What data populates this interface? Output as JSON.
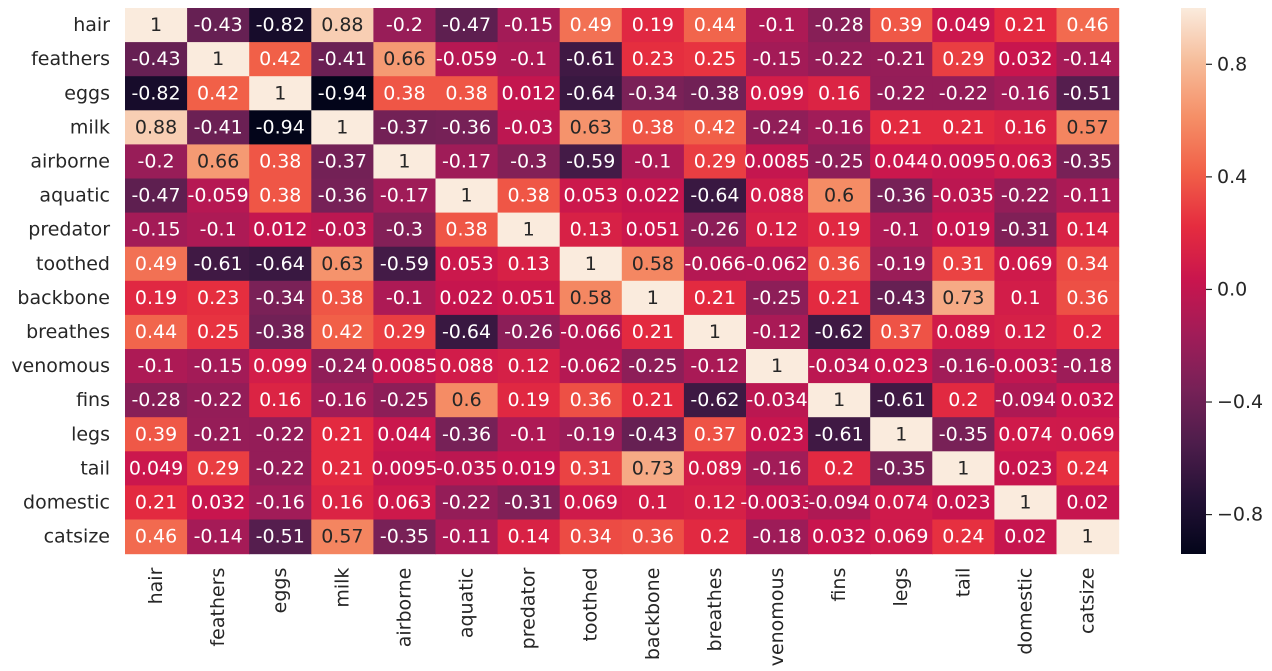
{
  "chart_data": {
    "type": "heatmap",
    "title": "",
    "xlabel": "",
    "ylabel": "",
    "colormap": "rocket",
    "vmin": -0.94,
    "vmax": 1,
    "labels": [
      "hair",
      "feathers",
      "eggs",
      "milk",
      "airborne",
      "aquatic",
      "predator",
      "toothed",
      "backbone",
      "breathes",
      "venomous",
      "fins",
      "legs",
      "tail",
      "domestic",
      "catsize"
    ],
    "values": [
      [
        1,
        -0.43,
        -0.82,
        0.88,
        -0.2,
        -0.47,
        -0.15,
        0.49,
        0.19,
        0.44,
        -0.1,
        -0.28,
        0.39,
        0.049,
        0.21,
        0.46
      ],
      [
        -0.43,
        1,
        0.42,
        -0.41,
        0.66,
        -0.059,
        -0.1,
        -0.61,
        0.23,
        0.25,
        -0.15,
        -0.22,
        -0.21,
        0.29,
        0.032,
        -0.14
      ],
      [
        -0.82,
        0.42,
        1,
        -0.94,
        0.38,
        0.38,
        0.012,
        -0.64,
        -0.34,
        -0.38,
        0.099,
        0.16,
        -0.22,
        -0.22,
        -0.16,
        -0.51
      ],
      [
        0.88,
        -0.41,
        -0.94,
        1,
        -0.37,
        -0.36,
        -0.03,
        0.63,
        0.38,
        0.42,
        -0.24,
        -0.16,
        0.21,
        0.21,
        0.16,
        0.57
      ],
      [
        -0.2,
        0.66,
        0.38,
        -0.37,
        1,
        -0.17,
        -0.3,
        -0.59,
        -0.1,
        0.29,
        0.0085,
        -0.25,
        0.044,
        0.0095,
        0.063,
        -0.35
      ],
      [
        -0.47,
        -0.059,
        0.38,
        -0.36,
        -0.17,
        1,
        0.38,
        0.053,
        0.022,
        -0.64,
        0.088,
        0.6,
        -0.36,
        -0.035,
        -0.22,
        -0.11
      ],
      [
        -0.15,
        -0.1,
        0.012,
        -0.03,
        -0.3,
        0.38,
        1,
        0.13,
        0.051,
        -0.26,
        0.12,
        0.19,
        -0.1,
        0.019,
        -0.31,
        0.14
      ],
      [
        0.49,
        -0.61,
        -0.64,
        0.63,
        -0.59,
        0.053,
        0.13,
        1,
        0.58,
        -0.066,
        -0.062,
        0.36,
        -0.19,
        0.31,
        0.069,
        0.34
      ],
      [
        0.19,
        0.23,
        -0.34,
        0.38,
        -0.1,
        0.022,
        0.051,
        0.58,
        1,
        0.21,
        -0.25,
        0.21,
        -0.43,
        0.73,
        0.1,
        0.36
      ],
      [
        0.44,
        0.25,
        -0.38,
        0.42,
        0.29,
        -0.64,
        -0.26,
        -0.066,
        0.21,
        1,
        -0.12,
        -0.62,
        0.37,
        0.089,
        0.12,
        0.2
      ],
      [
        -0.1,
        -0.15,
        0.099,
        -0.24,
        0.0085,
        0.088,
        0.12,
        -0.062,
        -0.25,
        -0.12,
        1,
        -0.034,
        0.023,
        -0.16,
        -0.0033,
        -0.18
      ],
      [
        -0.28,
        -0.22,
        0.16,
        -0.16,
        -0.25,
        0.6,
        0.19,
        0.36,
        0.21,
        -0.62,
        -0.034,
        1,
        -0.61,
        0.2,
        -0.094,
        0.032
      ],
      [
        0.39,
        -0.21,
        -0.22,
        0.21,
        0.044,
        -0.36,
        -0.1,
        -0.19,
        -0.43,
        0.37,
        0.023,
        -0.61,
        1,
        -0.35,
        0.074,
        0.069
      ],
      [
        0.049,
        0.29,
        -0.22,
        0.21,
        0.0095,
        -0.035,
        0.019,
        0.31,
        0.73,
        0.089,
        -0.16,
        0.2,
        -0.35,
        1,
        0.023,
        0.24
      ],
      [
        0.21,
        0.032,
        -0.16,
        0.16,
        0.063,
        -0.22,
        -0.31,
        0.069,
        0.1,
        0.12,
        -0.0033,
        -0.094,
        0.074,
        0.023,
        1,
        0.02
      ],
      [
        0.46,
        -0.14,
        -0.51,
        0.57,
        -0.35,
        -0.11,
        0.14,
        0.34,
        0.36,
        0.2,
        -0.18,
        0.032,
        0.069,
        0.24,
        0.02,
        1
      ]
    ],
    "colorbar": {
      "ticks": [
        0.8,
        0.4,
        0.0,
        -0.4,
        -0.8
      ],
      "tick_labels": [
        "0.8",
        "0.4",
        "0.0",
        "−0.4",
        "−0.8"
      ]
    }
  }
}
